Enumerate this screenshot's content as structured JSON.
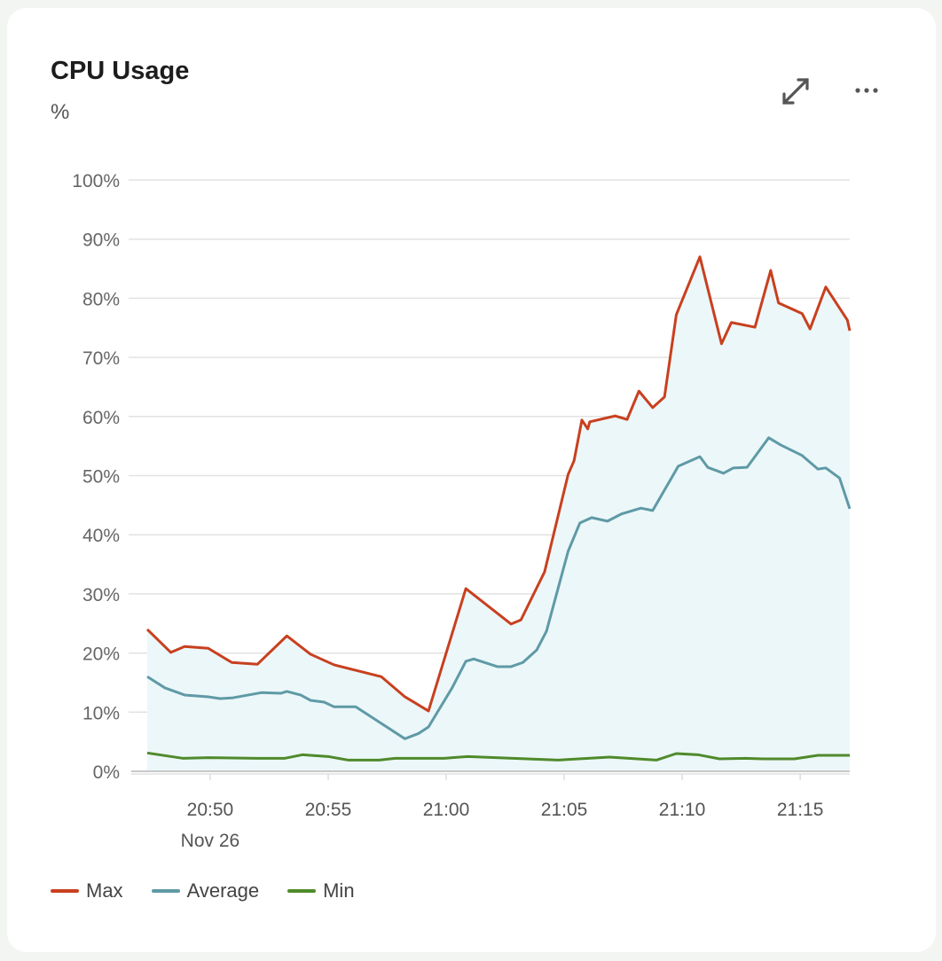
{
  "header": {
    "title": "CPU Usage",
    "unit": "%"
  },
  "icons": {
    "expand": "expand-arrows-icon",
    "more": "more-horizontal-icon"
  },
  "colors": {
    "Max": "#c8401f",
    "Average": "#5f9aa6",
    "Min": "#4f8a2b",
    "fill": "#ecf7f9"
  },
  "chart_data": {
    "type": "line",
    "title": "CPU Usage",
    "ylabel": "%",
    "ylim": [
      0,
      100
    ],
    "yticks": [
      "0%",
      "10%",
      "20%",
      "30%",
      "40%",
      "50%",
      "60%",
      "70%",
      "80%",
      "90%",
      "100%"
    ],
    "xlim": [
      "20:47:20",
      "21:17:06"
    ],
    "xticks": [
      "20:50",
      "20:55",
      "21:00",
      "21:05",
      "21:10",
      "21:15"
    ],
    "xdate_label": "Nov 26",
    "grid": true,
    "legend": "bottom-left",
    "series": [
      {
        "name": "Max",
        "points": [
          [
            "20:47:20",
            24.0
          ],
          [
            "20:48:20",
            20.1
          ],
          [
            "20:48:55",
            21.1
          ],
          [
            "20:49:55",
            20.8
          ],
          [
            "20:50:55",
            18.4
          ],
          [
            "20:52:00",
            18.1
          ],
          [
            "20:53:15",
            22.9
          ],
          [
            "20:54:15",
            19.8
          ],
          [
            "20:55:15",
            18.0
          ],
          [
            "20:57:15",
            16.0
          ],
          [
            "20:58:15",
            12.6
          ],
          [
            "20:59:15",
            10.2
          ],
          [
            "21:00:50",
            30.9
          ],
          [
            "21:02:45",
            24.9
          ],
          [
            "21:03:10",
            25.6
          ],
          [
            "21:04:10",
            33.7
          ],
          [
            "21:05:10",
            50.2
          ],
          [
            "21:05:25",
            52.5
          ],
          [
            "21:05:45",
            59.4
          ],
          [
            "21:06:00",
            57.9
          ],
          [
            "21:06:05",
            59.1
          ],
          [
            "21:07:10",
            60.1
          ],
          [
            "21:07:40",
            59.5
          ],
          [
            "21:08:10",
            64.3
          ],
          [
            "21:08:45",
            61.5
          ],
          [
            "21:09:15",
            63.3
          ],
          [
            "21:09:45",
            77.2
          ],
          [
            "21:10:45",
            87.0
          ],
          [
            "21:11:40",
            72.3
          ],
          [
            "21:12:05",
            75.9
          ],
          [
            "21:13:05",
            75.1
          ],
          [
            "21:13:45",
            84.7
          ],
          [
            "21:14:05",
            79.2
          ],
          [
            "21:15:05",
            77.4
          ],
          [
            "21:15:25",
            74.8
          ],
          [
            "21:16:05",
            81.9
          ],
          [
            "21:17:00",
            76.3
          ],
          [
            "21:17:06",
            74.5
          ]
        ]
      },
      {
        "name": "Average",
        "points": [
          [
            "20:47:20",
            16.0
          ],
          [
            "20:48:05",
            14.1
          ],
          [
            "20:48:55",
            12.9
          ],
          [
            "20:49:55",
            12.6
          ],
          [
            "20:50:25",
            12.3
          ],
          [
            "20:50:55",
            12.4
          ],
          [
            "20:52:10",
            13.3
          ],
          [
            "20:53:00",
            13.2
          ],
          [
            "20:53:15",
            13.5
          ],
          [
            "20:53:50",
            12.9
          ],
          [
            "20:54:15",
            12.0
          ],
          [
            "20:54:50",
            11.7
          ],
          [
            "20:55:15",
            10.9
          ],
          [
            "20:56:10",
            10.9
          ],
          [
            "20:57:15",
            8.1
          ],
          [
            "20:58:15",
            5.5
          ],
          [
            "20:58:50",
            6.4
          ],
          [
            "20:59:15",
            7.5
          ],
          [
            "21:00:15",
            14.1
          ],
          [
            "21:00:50",
            18.6
          ],
          [
            "21:01:10",
            19.0
          ],
          [
            "21:02:10",
            17.7
          ],
          [
            "21:02:45",
            17.7
          ],
          [
            "21:03:15",
            18.4
          ],
          [
            "21:03:50",
            20.5
          ],
          [
            "21:04:15",
            23.7
          ],
          [
            "21:05:10",
            37.2
          ],
          [
            "21:05:40",
            42.0
          ],
          [
            "21:06:10",
            42.9
          ],
          [
            "21:06:50",
            42.3
          ],
          [
            "21:07:25",
            43.5
          ],
          [
            "21:08:15",
            44.5
          ],
          [
            "21:08:45",
            44.1
          ],
          [
            "21:09:50",
            51.6
          ],
          [
            "21:10:45",
            53.2
          ],
          [
            "21:11:05",
            51.4
          ],
          [
            "21:11:45",
            50.4
          ],
          [
            "21:12:10",
            51.3
          ],
          [
            "21:12:45",
            51.4
          ],
          [
            "21:13:40",
            56.4
          ],
          [
            "21:14:10",
            55.2
          ],
          [
            "21:15:05",
            53.4
          ],
          [
            "21:15:45",
            51.1
          ],
          [
            "21:16:05",
            51.3
          ],
          [
            "21:16:40",
            49.6
          ],
          [
            "21:17:06",
            44.4
          ]
        ]
      },
      {
        "name": "Min",
        "points": [
          [
            "20:47:20",
            3.1
          ],
          [
            "20:48:50",
            2.2
          ],
          [
            "20:49:55",
            2.3
          ],
          [
            "20:52:00",
            2.2
          ],
          [
            "20:53:10",
            2.2
          ],
          [
            "20:53:55",
            2.8
          ],
          [
            "20:55:00",
            2.5
          ],
          [
            "20:55:50",
            1.9
          ],
          [
            "20:57:10",
            1.9
          ],
          [
            "20:57:50",
            2.2
          ],
          [
            "20:59:55",
            2.2
          ],
          [
            "21:00:55",
            2.5
          ],
          [
            "21:02:50",
            2.2
          ],
          [
            "21:04:45",
            1.9
          ],
          [
            "21:06:55",
            2.4
          ],
          [
            "21:08:55",
            1.9
          ],
          [
            "21:09:45",
            3.0
          ],
          [
            "21:10:40",
            2.8
          ],
          [
            "21:11:35",
            2.1
          ],
          [
            "21:12:40",
            2.2
          ],
          [
            "21:13:25",
            2.1
          ],
          [
            "21:14:45",
            2.1
          ],
          [
            "21:15:45",
            2.7
          ],
          [
            "21:17:06",
            2.7
          ]
        ]
      }
    ]
  }
}
